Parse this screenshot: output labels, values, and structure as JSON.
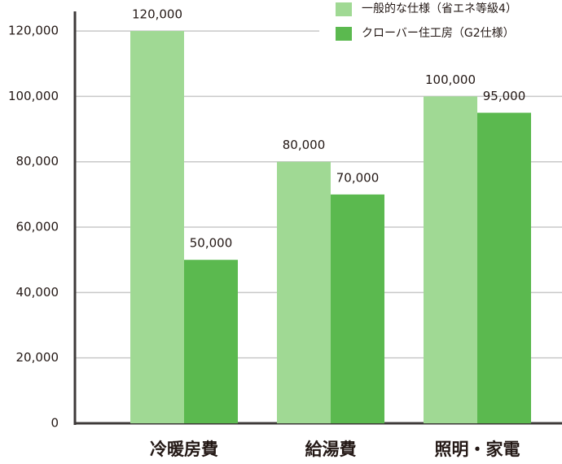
{
  "chart_data": {
    "type": "bar",
    "categories": [
      "冷暖房費",
      "給湯費",
      "照明・家電"
    ],
    "series": [
      {
        "name": "一般的な仕様（省エネ等級4）",
        "color": "#a0d994",
        "values": [
          120000,
          80000,
          100000
        ],
        "value_labels": [
          "120,000",
          "80,000",
          "100,000"
        ]
      },
      {
        "name": "クローバー住工房（G2仕様）",
        "color": "#5bb94f",
        "values": [
          50000,
          70000,
          95000
        ],
        "value_labels": [
          "50,000",
          "70,000",
          "95,000"
        ]
      }
    ],
    "ylim": [
      0,
      126000
    ],
    "yticks": [
      0,
      {
        "value": 20000,
        "label": "20,000"
      },
      {
        "value": 40000,
        "label": "40,000"
      },
      {
        "value": 60000,
        "label": "60,000"
      },
      {
        "value": 80000,
        "label": "80,000"
      },
      {
        "value": 100000,
        "label": "100,000"
      },
      {
        "value": 120000,
        "label": "120,000"
      }
    ],
    "grid": true,
    "legend": "top-right"
  }
}
